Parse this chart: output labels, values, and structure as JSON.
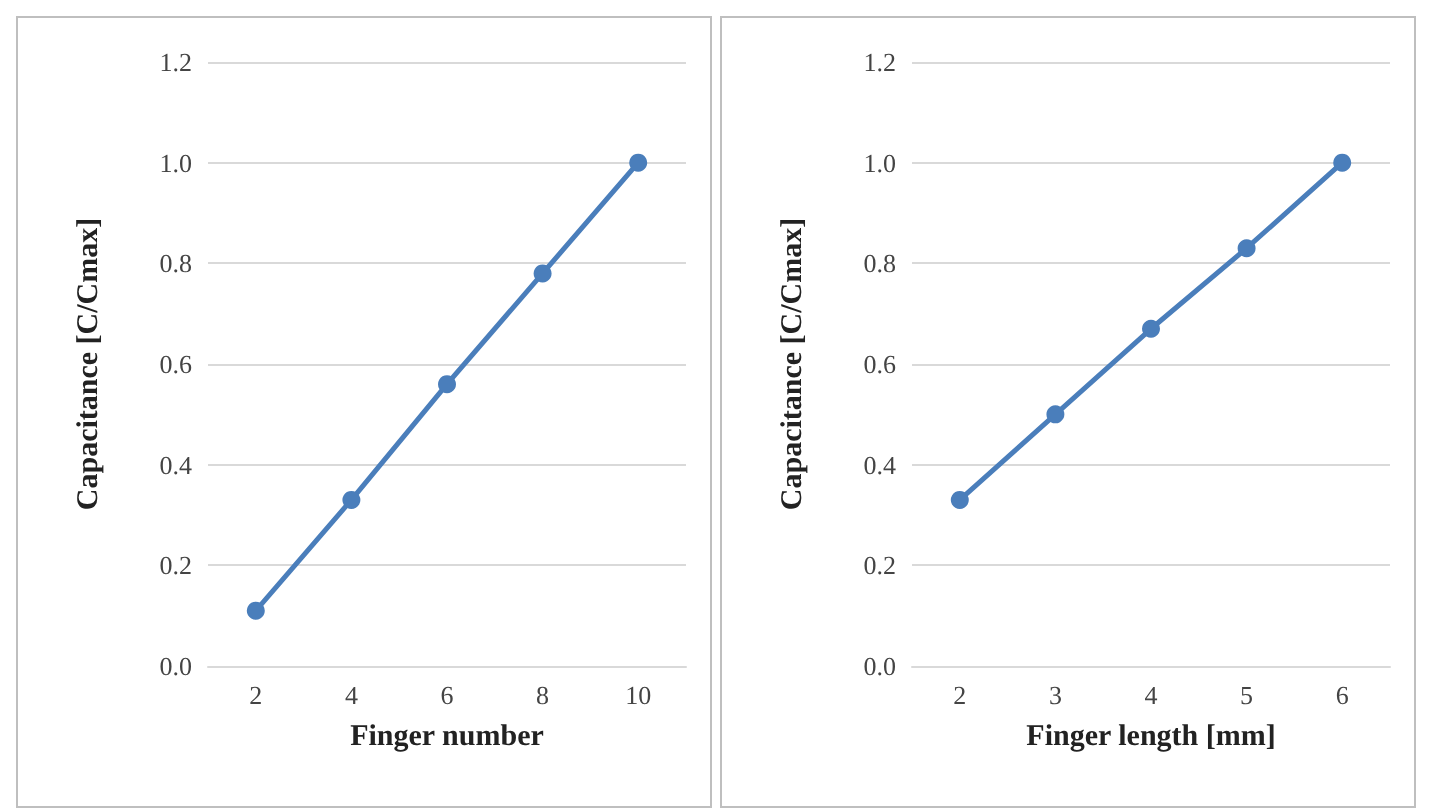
{
  "chart_data": [
    {
      "type": "line",
      "xlabel": "Finger number",
      "ylabel": "Capacitance [C/Cmax]",
      "categories": [
        "2",
        "4",
        "6",
        "8",
        "10"
      ],
      "series": [
        {
          "color": "#4a7ebb",
          "values": [
            0.11,
            0.33,
            0.56,
            0.78,
            1.0
          ]
        }
      ],
      "ylim": [
        0,
        1.2
      ],
      "yticks": [
        {
          "value": 0,
          "label": "0.0"
        },
        {
          "value": 0.2,
          "label": "0.2"
        },
        {
          "value": 0.4,
          "label": "0.4"
        },
        {
          "value": 0.6,
          "label": "0.6"
        },
        {
          "value": 0.8,
          "label": "0.8"
        },
        {
          "value": 1,
          "label": "1.0"
        },
        {
          "value": 1.2,
          "label": "1.2"
        }
      ],
      "grid": "y",
      "marker": "circle",
      "line_style": "solid"
    },
    {
      "type": "line",
      "xlabel": "Finger length [mm]",
      "ylabel": "Capacitance [C/Cmax]",
      "categories": [
        "2",
        "3",
        "4",
        "5",
        "6"
      ],
      "series": [
        {
          "color": "#4a7ebb",
          "values": [
            0.33,
            0.5,
            0.67,
            0.83,
            1.0
          ]
        }
      ],
      "ylim": [
        0,
        1.2
      ],
      "yticks": [
        {
          "value": 0,
          "label": "0.0"
        },
        {
          "value": 0.2,
          "label": "0.2"
        },
        {
          "value": 0.4,
          "label": "0.4"
        },
        {
          "value": 0.6,
          "label": "0.6"
        },
        {
          "value": 0.8,
          "label": "0.8"
        },
        {
          "value": 1,
          "label": "1.0"
        },
        {
          "value": 1.2,
          "label": "1.2"
        }
      ],
      "grid": "y",
      "marker": "circle",
      "line_style": "solid"
    }
  ]
}
